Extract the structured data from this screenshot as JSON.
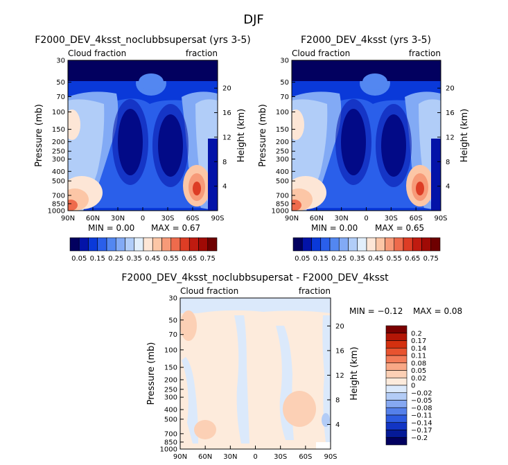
{
  "figure_title": "DJF",
  "chart_data": [
    {
      "type": "heatmap",
      "title": "F2000_DEV_4ksst_noclubbsupersat (yrs 3-5)",
      "left_label": "Cloud fraction",
      "right_label": "fraction",
      "xlabel": "",
      "ylabel": "Pressure (mb)",
      "y2label": "Height (km)",
      "x_ticks": [
        "90N",
        "60N",
        "30N",
        "0",
        "30S",
        "60S",
        "90S"
      ],
      "y_ticks": [
        "30",
        "50",
        "70",
        "100",
        "150",
        "200",
        "250",
        "300",
        "400",
        "500",
        "700",
        "850",
        "1000"
      ],
      "y_tick_values": [
        30,
        50,
        70,
        100,
        150,
        200,
        250,
        300,
        400,
        500,
        700,
        850,
        1000
      ],
      "y2_ticks": [
        "20",
        "16",
        "12",
        "8",
        "4"
      ],
      "y2_tick_values": [
        20,
        16,
        12,
        8,
        4
      ],
      "min": 0.0,
      "max": 0.67,
      "min_text": "MIN =    0.00",
      "max_text": "MAX =    0.67",
      "colorbar": {
        "orientation": "horizontal",
        "labels": [
          "0.05",
          "0.15",
          "0.25",
          "0.35",
          "0.45",
          "0.55",
          "0.65",
          "0.75"
        ],
        "levels": [
          0.05,
          0.1,
          0.15,
          0.2,
          0.25,
          0.3,
          0.35,
          0.4,
          0.45,
          0.5,
          0.55,
          0.6,
          0.65,
          0.7,
          0.75
        ],
        "colors": [
          "#02005f",
          "#0313a8",
          "#0a39d9",
          "#2a5fea",
          "#5387f1",
          "#82aaf5",
          "#b1cdf8",
          "#e2effb",
          "#fde6d6",
          "#fcc6a6",
          "#f79a78",
          "#ee6b4c",
          "#dd3d25",
          "#c01b10",
          "#a00a05",
          "#6e0000"
        ]
      }
    },
    {
      "type": "heatmap",
      "title": "F2000_DEV_4ksst (yrs 3-5)",
      "left_label": "Cloud fraction",
      "right_label": "fraction",
      "xlabel": "",
      "ylabel": "Pressure (mb)",
      "y2label": "Height (km)",
      "x_ticks": [
        "90N",
        "60N",
        "30N",
        "0",
        "30S",
        "60S",
        "90S"
      ],
      "y_ticks": [
        "30",
        "50",
        "70",
        "100",
        "150",
        "200",
        "250",
        "300",
        "400",
        "500",
        "700",
        "850",
        "1000"
      ],
      "y_tick_values": [
        30,
        50,
        70,
        100,
        150,
        200,
        250,
        300,
        400,
        500,
        700,
        850,
        1000
      ],
      "y2_ticks": [
        "20",
        "16",
        "12",
        "8",
        "4"
      ],
      "y2_tick_values": [
        20,
        16,
        12,
        8,
        4
      ],
      "min": 0.0,
      "max": 0.65,
      "min_text": "MIN =    0.00",
      "max_text": "MAX =    0.65",
      "colorbar": {
        "orientation": "horizontal",
        "labels": [
          "0.05",
          "0.15",
          "0.25",
          "0.35",
          "0.45",
          "0.55",
          "0.65",
          "0.75"
        ],
        "levels": [
          0.05,
          0.1,
          0.15,
          0.2,
          0.25,
          0.3,
          0.35,
          0.4,
          0.45,
          0.5,
          0.55,
          0.6,
          0.65,
          0.7,
          0.75
        ],
        "colors": [
          "#02005f",
          "#0313a8",
          "#0a39d9",
          "#2a5fea",
          "#5387f1",
          "#82aaf5",
          "#b1cdf8",
          "#e2effb",
          "#fde6d6",
          "#fcc6a6",
          "#f79a78",
          "#ee6b4c",
          "#dd3d25",
          "#c01b10",
          "#a00a05",
          "#6e0000"
        ]
      }
    },
    {
      "type": "heatmap",
      "title": "F2000_DEV_4ksst_noclubbsupersat - F2000_DEV_4ksst",
      "left_label": "Cloud fraction",
      "right_label": "fraction",
      "xlabel": "",
      "ylabel": "Pressure (mb)",
      "y2label": "Height (km)",
      "x_ticks": [
        "90N",
        "60N",
        "30N",
        "0",
        "30S",
        "60S",
        "90S"
      ],
      "y_ticks": [
        "30",
        "50",
        "70",
        "100",
        "150",
        "200",
        "250",
        "300",
        "400",
        "500",
        "700",
        "850",
        "1000"
      ],
      "y_tick_values": [
        30,
        50,
        70,
        100,
        150,
        200,
        250,
        300,
        400,
        500,
        700,
        850,
        1000
      ],
      "y2_ticks": [
        "20",
        "16",
        "12",
        "8",
        "4"
      ],
      "y2_tick_values": [
        20,
        16,
        12,
        8,
        4
      ],
      "min": -0.12,
      "max": 0.08,
      "min_text": "MIN = −0.12",
      "max_text": "MAX =    0.08",
      "colorbar": {
        "orientation": "vertical",
        "labels": [
          "0.2",
          "0.17",
          "0.14",
          "0.11",
          "0.08",
          "0.05",
          "0.02",
          "0",
          "−0.02",
          "−0.05",
          "−0.08",
          "−0.11",
          "−0.14",
          "−0.17",
          "−0.2"
        ],
        "colors": [
          "#7a0000",
          "#b31606",
          "#d4300f",
          "#e8532f",
          "#f37c59",
          "#f9a886",
          "#fcd0b5",
          "#fdebdc",
          "#dbe9fb",
          "#b3ccf6",
          "#86a8f1",
          "#5580ea",
          "#2d5be0",
          "#1235c4",
          "#051a97",
          "#02005f"
        ]
      }
    }
  ]
}
